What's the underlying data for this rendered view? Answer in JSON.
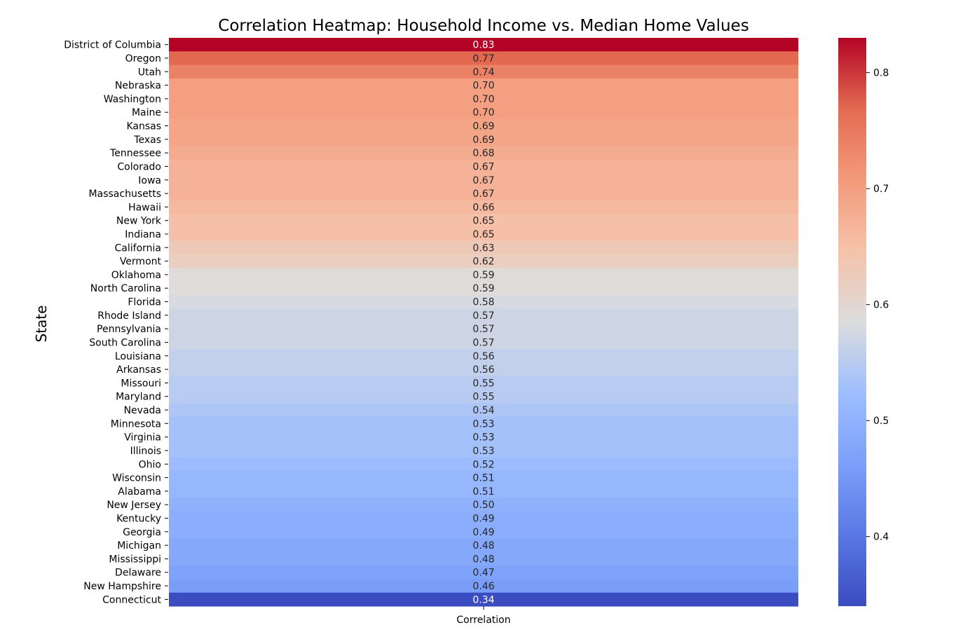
{
  "chart_data": {
    "type": "heatmap",
    "title": "Correlation Heatmap: Household Income vs. Median Home Values",
    "xlabel": "",
    "ylabel": "State",
    "columns": [
      "Correlation"
    ],
    "rows": [
      "District of Columbia",
      "Oregon",
      "Utah",
      "Nebraska",
      "Washington",
      "Maine",
      "Kansas",
      "Texas",
      "Tennessee",
      "Colorado",
      "Iowa",
      "Massachusetts",
      "Hawaii",
      "New York",
      "Indiana",
      "California",
      "Vermont",
      "Oklahoma",
      "North Carolina",
      "Florida",
      "Rhode Island",
      "Pennsylvania",
      "South Carolina",
      "Louisiana",
      "Arkansas",
      "Missouri",
      "Maryland",
      "Nevada",
      "Minnesota",
      "Virginia",
      "Illinois",
      "Ohio",
      "Wisconsin",
      "Alabama",
      "New Jersey",
      "Kentucky",
      "Georgia",
      "Michigan",
      "Mississippi",
      "Delaware",
      "New Hampshire",
      "Connecticut"
    ],
    "values": [
      0.83,
      0.77,
      0.74,
      0.7,
      0.7,
      0.7,
      0.69,
      0.69,
      0.68,
      0.67,
      0.67,
      0.67,
      0.66,
      0.65,
      0.65,
      0.63,
      0.62,
      0.59,
      0.59,
      0.58,
      0.57,
      0.57,
      0.57,
      0.56,
      0.56,
      0.55,
      0.55,
      0.54,
      0.53,
      0.53,
      0.53,
      0.52,
      0.51,
      0.51,
      0.5,
      0.49,
      0.49,
      0.48,
      0.48,
      0.47,
      0.46,
      0.34
    ],
    "value_labels": [
      "0.83",
      "0.77",
      "0.74",
      "0.70",
      "0.70",
      "0.70",
      "0.69",
      "0.69",
      "0.68",
      "0.67",
      "0.67",
      "0.67",
      "0.66",
      "0.65",
      "0.65",
      "0.63",
      "0.62",
      "0.59",
      "0.59",
      "0.58",
      "0.57",
      "0.57",
      "0.57",
      "0.56",
      "0.56",
      "0.55",
      "0.55",
      "0.54",
      "0.53",
      "0.53",
      "0.53",
      "0.52",
      "0.51",
      "0.51",
      "0.50",
      "0.49",
      "0.49",
      "0.48",
      "0.48",
      "0.47",
      "0.46",
      "0.34"
    ],
    "colorbar": {
      "colormap": "coolwarm",
      "range": [
        0.34,
        0.83
      ],
      "ticks": [
        0.4,
        0.5,
        0.6,
        0.7,
        0.8
      ],
      "tick_labels": [
        "0.4",
        "0.5",
        "0.6",
        "0.7",
        "0.8"
      ]
    },
    "annotations": true
  }
}
